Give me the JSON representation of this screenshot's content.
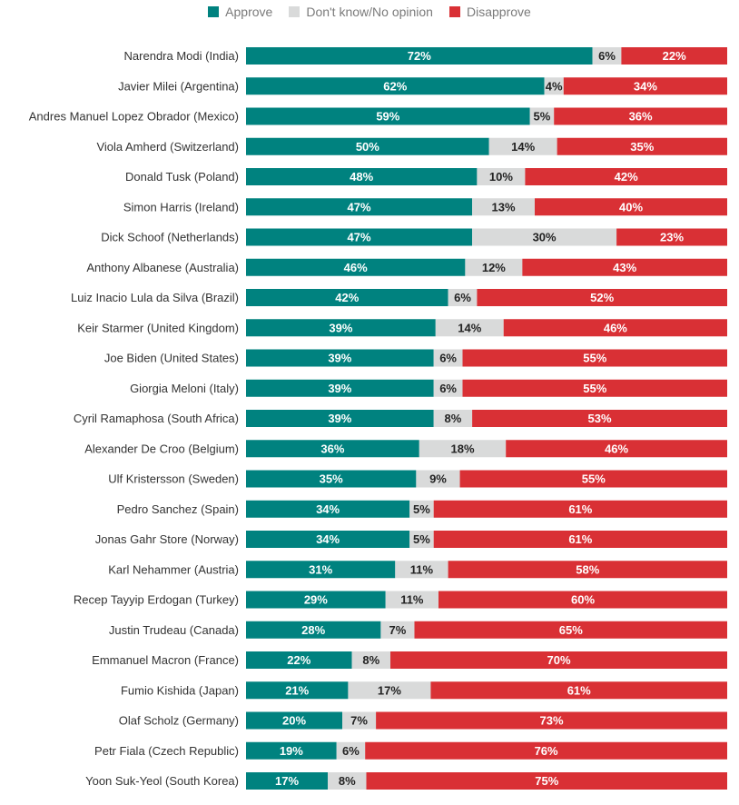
{
  "chart_data": {
    "type": "bar",
    "orientation": "horizontal-stacked",
    "legend_position": "top",
    "series": [
      {
        "name": "Approve",
        "color": "#00827f",
        "text_color": "#ffffff",
        "values": [
          72,
          62,
          59,
          50,
          48,
          47,
          47,
          46,
          42,
          39,
          39,
          39,
          39,
          36,
          35,
          34,
          34,
          31,
          29,
          28,
          22,
          21,
          20,
          19,
          17
        ]
      },
      {
        "name": "Don't know/No opinion",
        "color": "#d9dada",
        "text_color": "#222222",
        "values": [
          6,
          4,
          5,
          14,
          10,
          13,
          30,
          12,
          6,
          14,
          6,
          6,
          8,
          18,
          9,
          5,
          5,
          11,
          11,
          7,
          8,
          17,
          7,
          6,
          8
        ]
      },
      {
        "name": "Disapprove",
        "color": "#d93035",
        "text_color": "#ffffff",
        "values": [
          22,
          34,
          36,
          35,
          42,
          40,
          23,
          43,
          52,
          46,
          55,
          55,
          53,
          46,
          55,
          61,
          61,
          58,
          60,
          65,
          70,
          61,
          73,
          76,
          75
        ]
      }
    ],
    "categories": [
      "Narendra Modi (India)",
      "Javier Milei (Argentina)",
      "Andres Manuel Lopez Obrador (Mexico)",
      "Viola Amherd (Switzerland)",
      "Donald Tusk (Poland)",
      "Simon Harris (Ireland)",
      "Dick Schoof (Netherlands)",
      "Anthony Albanese (Australia)",
      "Luiz Inacio Lula da Silva (Brazil)",
      "Keir Starmer (United Kingdom)",
      "Joe Biden (United States)",
      "Giorgia Meloni (Italy)",
      "Cyril Ramaphosa (South Africa)",
      "Alexander De Croo (Belgium)",
      "Ulf Kristersson (Sweden)",
      "Pedro Sanchez (Spain)",
      "Jonas Gahr Store (Norway)",
      "Karl Nehammer (Austria)",
      "Recep Tayyip Erdogan (Turkey)",
      "Justin Trudeau (Canada)",
      "Emmanuel Macron (France)",
      "Fumio Kishida (Japan)",
      "Olaf Scholz (Germany)",
      "Petr Fiala (Czech Republic)",
      "Yoon Suk-Yeol (South Korea)"
    ],
    "value_suffix": "%",
    "xlim": [
      0,
      100
    ],
    "grid": false
  }
}
